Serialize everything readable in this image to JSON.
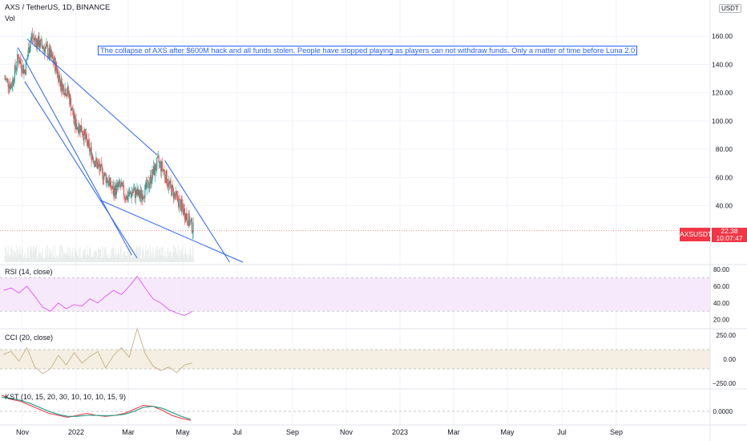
{
  "header": {
    "symbol_line": "AXS / TetherUS, 1D, BINANCE",
    "vol_label": "Vol",
    "unit": "USDT",
    "top_clip": "18"
  },
  "annotation": "The collapse of AXS after $600M hack and all funds stolen. People have stopped playing as players can not withdraw funds. Only a matter of time before Luna 2.0",
  "price_tag": {
    "symbol": "AXSUSDT",
    "price": "22.38",
    "countdown": "10:07:47"
  },
  "colors": {
    "up": "#26a69a",
    "down": "#ef5350",
    "line": "#2962ff",
    "rsi": "#e040fb",
    "cci": "#c2a77a",
    "kst": "#f23645",
    "kst_signal": "#089981",
    "grid": "#f0f3fa"
  },
  "panes": {
    "rsi": {
      "title": "RSI (14, close)",
      "ticks": [
        "80.00",
        "60.00",
        "40.00",
        "20.00"
      ]
    },
    "cci": {
      "title": "CCI (20, close)",
      "ticks": [
        "250.00",
        "0.00",
        "−250.00"
      ]
    },
    "kst": {
      "title": "KST (10, 15, 20, 30, 10, 10, 10, 15, 9)",
      "ticks": [
        "0.0000"
      ]
    }
  },
  "chart_data": [
    {
      "type": "candlestick",
      "title": "AXS / TetherUS, 1D, BINANCE",
      "x_ticks": [
        "Nov",
        "2022",
        "Mar",
        "May",
        "Jul",
        "Sep",
        "Nov",
        "2023",
        "Mar",
        "May",
        "Jul",
        "Sep"
      ],
      "y_ticks": [
        "160.00",
        "140.00",
        "120.00",
        "100.00",
        "80.00",
        "60.00",
        "40.00"
      ],
      "ylim": [
        0,
        180
      ],
      "last_price": 22.38,
      "price_path": [
        {
          "t": 0.0,
          "p": 130
        },
        {
          "t": 0.5,
          "p": 125
        },
        {
          "t": 1.0,
          "p": 145
        },
        {
          "t": 1.5,
          "p": 135
        },
        {
          "t": 2.0,
          "p": 160
        },
        {
          "t": 2.6,
          "p": 155
        },
        {
          "t": 3.2,
          "p": 150
        },
        {
          "t": 3.8,
          "p": 140
        },
        {
          "t": 4.3,
          "p": 125
        },
        {
          "t": 4.8,
          "p": 120
        },
        {
          "t": 5.3,
          "p": 98
        },
        {
          "t": 5.8,
          "p": 95
        },
        {
          "t": 6.3,
          "p": 82
        },
        {
          "t": 6.8,
          "p": 72
        },
        {
          "t": 7.3,
          "p": 64
        },
        {
          "t": 7.8,
          "p": 58
        },
        {
          "t": 8.2,
          "p": 50
        },
        {
          "t": 8.7,
          "p": 54
        },
        {
          "t": 9.2,
          "p": 46
        },
        {
          "t": 9.7,
          "p": 50
        },
        {
          "t": 10.2,
          "p": 47
        },
        {
          "t": 10.7,
          "p": 52
        },
        {
          "t": 11.2,
          "p": 63
        },
        {
          "t": 11.6,
          "p": 71
        },
        {
          "t": 12.0,
          "p": 65
        },
        {
          "t": 12.4,
          "p": 55
        },
        {
          "t": 12.8,
          "p": 48
        },
        {
          "t": 13.2,
          "p": 42
        },
        {
          "t": 13.6,
          "p": 35
        },
        {
          "t": 14.0,
          "p": 28
        },
        {
          "t": 14.3,
          "p": 22.38
        }
      ],
      "trendlines": [
        {
          "from": [
            1.7,
            158
          ],
          "to": [
            11.5,
            76
          ]
        },
        {
          "from": [
            1.0,
            152
          ],
          "to": [
            9.6,
            5
          ]
        },
        {
          "from": [
            1.5,
            128
          ],
          "to": [
            10.0,
            3
          ]
        },
        {
          "from": [
            7.2,
            44
          ],
          "to": [
            18.0,
            0
          ]
        },
        {
          "from": [
            12.1,
            72
          ],
          "to": [
            17.0,
            0
          ]
        }
      ]
    },
    {
      "type": "line",
      "title": "RSI (14, close)",
      "ylim": [
        10,
        85
      ],
      "bands": [
        70,
        30
      ],
      "values": [
        55,
        58,
        52,
        60,
        48,
        35,
        30,
        40,
        33,
        38,
        36,
        45,
        40,
        48,
        55,
        50,
        60,
        72,
        58,
        45,
        40,
        32,
        28,
        25,
        30
      ]
    },
    {
      "type": "line",
      "title": "CCI (20, close)",
      "ylim": [
        -300,
        300
      ],
      "bands": [
        100,
        -100
      ],
      "values": [
        50,
        80,
        -20,
        120,
        -80,
        -150,
        -100,
        40,
        -60,
        70,
        -40,
        30,
        80,
        -90,
        40,
        120,
        20,
        320,
        60,
        -70,
        -120,
        -80,
        -140,
        -60,
        -40
      ]
    },
    {
      "type": "line",
      "title": "KST (10, 15, 20, 30, 10, 10, 10, 15, 9)",
      "series": [
        {
          "values": [
            0.8,
            0.6,
            0.5,
            0.3,
            0.1,
            -0.1,
            -0.2,
            -0.3,
            -0.2,
            -0.1,
            -0.2,
            -0.25,
            -0.2,
            -0.1,
            0.1,
            0.3,
            0.25,
            0.05,
            -0.2,
            -0.35,
            -0.45
          ]
        },
        {
          "values": [
            0.7,
            0.65,
            0.55,
            0.4,
            0.2,
            0.0,
            -0.15,
            -0.25,
            -0.25,
            -0.2,
            -0.2,
            -0.22,
            -0.2,
            -0.15,
            0.0,
            0.2,
            0.25,
            0.15,
            -0.05,
            -0.25,
            -0.4
          ]
        }
      ]
    }
  ]
}
